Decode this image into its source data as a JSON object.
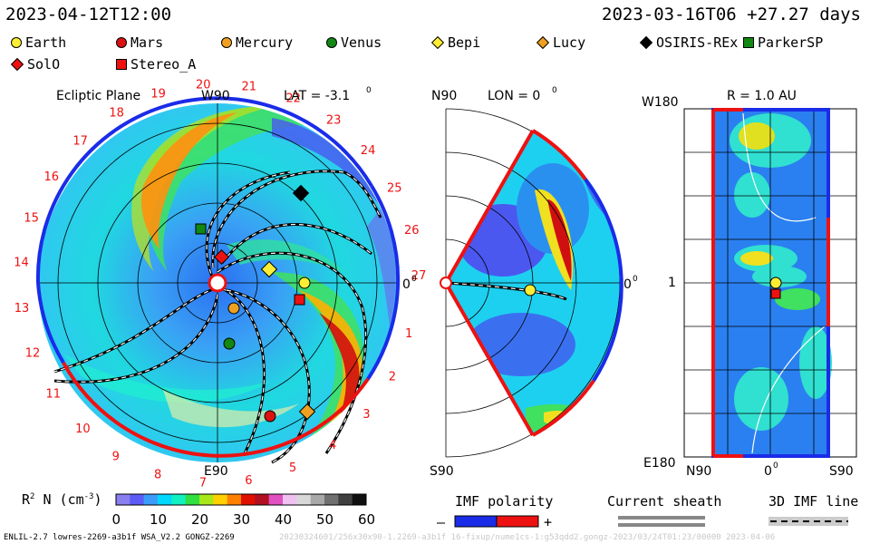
{
  "header": {
    "left_date": "2023-04-12T12:00",
    "right_info": "2023-03-16T06 +27.27 days"
  },
  "legend": [
    {
      "name": "Earth",
      "shape": "circle",
      "color": "#ffee33"
    },
    {
      "name": "Mars",
      "shape": "circle",
      "color": "#dd1111"
    },
    {
      "name": "Mercury",
      "shape": "circle",
      "color": "#f0a020"
    },
    {
      "name": "Venus",
      "shape": "circle",
      "color": "#118811"
    },
    {
      "name": "Bepi",
      "shape": "diamond",
      "color": "#ffee33"
    },
    {
      "name": "Lucy",
      "shape": "diamond",
      "color": "#f0a020"
    },
    {
      "name": "OSIRIS-REx",
      "shape": "diamond",
      "color": "#000000"
    },
    {
      "name": "ParkerSP",
      "shape": "square",
      "color": "#118811"
    },
    {
      "name": "SolO",
      "shape": "diamond",
      "color": "#ee1111"
    },
    {
      "name": "Stereo_A",
      "shape": "square",
      "color": "#ee1111"
    }
  ],
  "panels": {
    "ecliptic": {
      "title": "Ecliptic Plane",
      "top_label": "W90",
      "bottom_label": "E90",
      "right_label": "0",
      "right_label_sup": "0",
      "lat_label": "LAT = -3.1",
      "lat_sup": "0",
      "rotation_numbers": [
        "1",
        "2",
        "3",
        "4",
        "5",
        "6",
        "7",
        "8",
        "9",
        "10",
        "11",
        "12",
        "13",
        "14",
        "15",
        "16",
        "17",
        "18",
        "19",
        "20",
        "21",
        "22",
        "23",
        "24",
        "25",
        "26",
        "27"
      ]
    },
    "meridional": {
      "top_label": "N90",
      "bottom_label": "S90",
      "lon_label": "LON = 0",
      "lon_sup": "0",
      "right_label": "0",
      "right_label_sup": "0"
    },
    "surface": {
      "title": "R = 1.0 AU",
      "left_top": "W180",
      "left_mid": "1",
      "left_bottom": "E180",
      "bottom_left": "N90",
      "bottom_mid": "0",
      "bottom_mid_sup": "0",
      "bottom_right": "S90"
    }
  },
  "colorbar": {
    "label": "R",
    "label_sup": "2",
    "label_rest": "N (cm",
    "label_unit_sup": "-3",
    "label_close": ")",
    "ticks": [
      "0",
      "10",
      "20",
      "30",
      "40",
      "50",
      "60"
    ],
    "colors": [
      "#8a7ff0",
      "#5b5cf5",
      "#3a9cf8",
      "#00d8ff",
      "#10f0c0",
      "#30e040",
      "#a8e818",
      "#ffd000",
      "#ff8000",
      "#e01000",
      "#b01020",
      "#e050c0",
      "#f0c0f0",
      "#d8d8d8",
      "#a8a8a8",
      "#707070",
      "#404040",
      "#101010"
    ]
  },
  "bottom_legends": {
    "imf_title": "IMF polarity",
    "minus": "–",
    "plus": "+",
    "sheath_title": "Current sheath",
    "imf_line_title": "3D IMF line"
  },
  "footer": {
    "model": "ENLIL-2.7 lowres-2269-a3b1f WSA_V2.2 GONGZ-2269",
    "extra": "20230324601/256x30x90-1.2269-a3b1f 16-fixup/nume1cs-1:g53qdd2.gongz-2023/03/24T01:23/00000   2023-04-06"
  },
  "chart_data": {
    "type": "heatmap",
    "quantity": "R2 N (cm-3)",
    "colorbar_range": [
      0,
      60
    ],
    "colorbar_ticks": [
      0,
      10,
      20,
      30,
      40,
      50,
      60
    ],
    "objects_ecliptic": [
      {
        "name": "Earth",
        "angle_deg": 0,
        "r_au": 1.0
      },
      {
        "name": "Mars",
        "angle_deg": -53,
        "r_au": 1.62
      },
      {
        "name": "Mercury",
        "angle_deg": -30,
        "r_au": 0.34
      },
      {
        "name": "Venus",
        "angle_deg": -55,
        "r_au": 0.72
      },
      {
        "name": "Bepi",
        "angle_deg": 12,
        "r_au": 0.57
      },
      {
        "name": "Lucy",
        "angle_deg": -45,
        "r_au": 1.9
      },
      {
        "name": "OSIRIS-REx",
        "angle_deg": 48,
        "r_au": 1.1
      },
      {
        "name": "ParkerSP",
        "angle_deg": 118,
        "r_au": 0.32
      },
      {
        "name": "SolO",
        "angle_deg": 64,
        "r_au": 0.29
      },
      {
        "name": "Stereo_A",
        "angle_deg": -10,
        "r_au": 0.95
      }
    ]
  }
}
